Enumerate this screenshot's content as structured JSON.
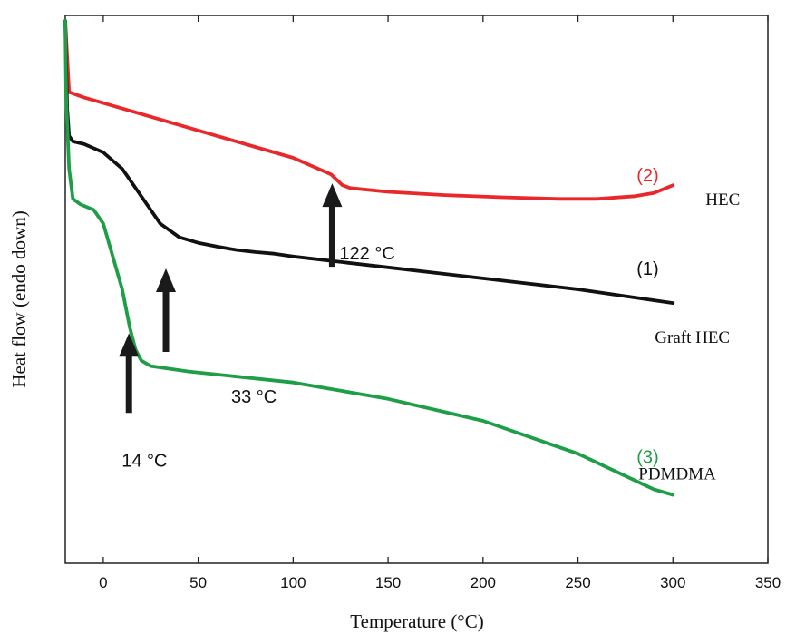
{
  "chart_data": {
    "type": "line",
    "xlabel": "Temperature (°C)",
    "ylabel": "Heat flow (endo down)",
    "xlim": [
      -20,
      350
    ],
    "x_ticks": [
      "0",
      "50",
      "100",
      "150",
      "200",
      "250",
      "300",
      "350"
    ],
    "x_tick_values": [
      0,
      50,
      100,
      150,
      200,
      250,
      300,
      350
    ],
    "y_unit": "relative (no y scale shown)",
    "ylim": [
      0,
      1
    ],
    "grid": false,
    "series": [
      {
        "number": "(2)",
        "name": "HEC",
        "color": "#e8282a",
        "x": [
          -20,
          -18,
          -10,
          0,
          20,
          40,
          60,
          80,
          100,
          110,
          120,
          126,
          130,
          150,
          180,
          210,
          240,
          260,
          280,
          290,
          300
        ],
        "y": [
          0.99,
          0.86,
          0.85,
          0.84,
          0.82,
          0.8,
          0.78,
          0.76,
          0.74,
          0.725,
          0.71,
          0.69,
          0.685,
          0.678,
          0.672,
          0.668,
          0.665,
          0.665,
          0.67,
          0.676,
          0.69
        ]
      },
      {
        "number": "(1)",
        "name": "Graft HEC",
        "color": "#111111",
        "x": [
          -20,
          -19,
          -18,
          -16,
          -10,
          0,
          10,
          20,
          30,
          40,
          50,
          60,
          70,
          80,
          90,
          100,
          150,
          200,
          250,
          300
        ],
        "y": [
          0.99,
          0.83,
          0.78,
          0.77,
          0.765,
          0.75,
          0.72,
          0.67,
          0.62,
          0.595,
          0.585,
          0.578,
          0.572,
          0.568,
          0.565,
          0.56,
          0.54,
          0.52,
          0.5,
          0.475
        ]
      },
      {
        "number": "(3)",
        "name": "PDMDMA",
        "color": "#1e9e46",
        "x": [
          -20,
          -19.5,
          -18,
          -16,
          -12,
          -5,
          0,
          5,
          10,
          14,
          17,
          20,
          25,
          35,
          45,
          100,
          150,
          200,
          250,
          290,
          300
        ],
        "y": [
          0.99,
          0.85,
          0.72,
          0.665,
          0.655,
          0.645,
          0.62,
          0.56,
          0.5,
          0.43,
          0.39,
          0.37,
          0.36,
          0.355,
          0.35,
          0.33,
          0.3,
          0.26,
          0.2,
          0.135,
          0.125
        ]
      }
    ],
    "annotations": [
      {
        "text": "122 °C",
        "x": 122,
        "series": "HEC"
      },
      {
        "text": "33 °C",
        "x": 33,
        "series": "Graft HEC"
      },
      {
        "text": "14 °C",
        "x": 14,
        "series": "PDMDMA"
      }
    ]
  }
}
